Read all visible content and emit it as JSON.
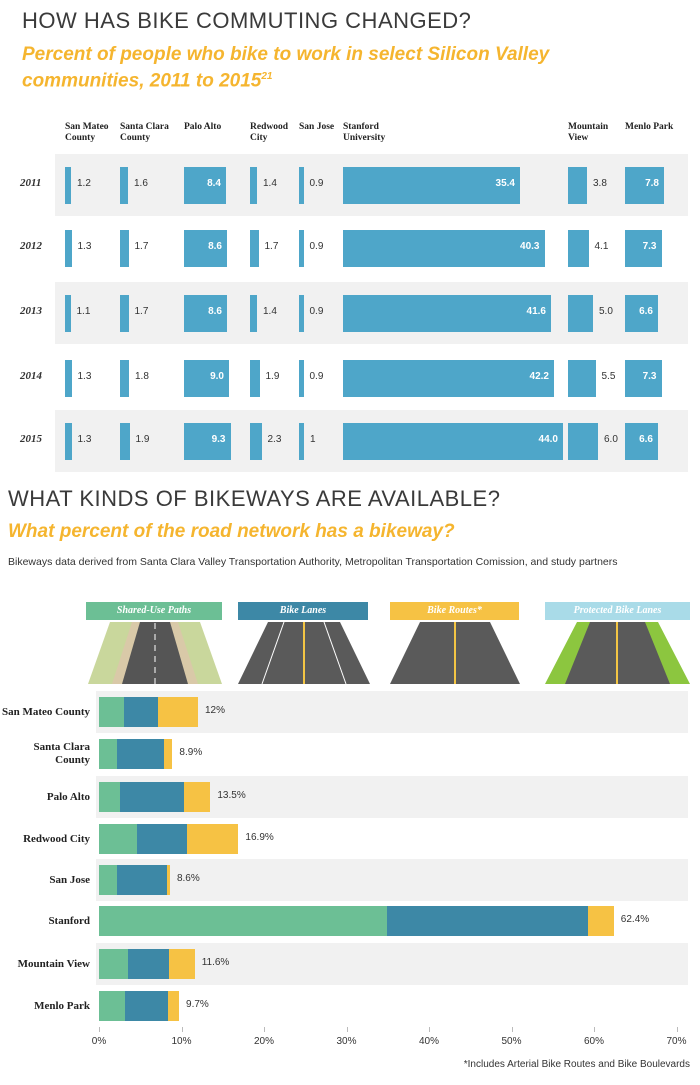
{
  "chart_data": [
    {
      "type": "bar",
      "title": "HOW HAS BIKE COMMUTING CHANGED?",
      "subtitle": "Percent of people who bike to work in select Silicon Valley communities, 2011 to 2015",
      "subtitle_note": "21",
      "categories": [
        "2011",
        "2012",
        "2013",
        "2014",
        "2015"
      ],
      "color": "#4ea6c9",
      "series": [
        {
          "name": "San Mateo County",
          "values": [
            1.2,
            1.3,
            1.1,
            1.3,
            1.3
          ]
        },
        {
          "name": "Santa Clara County",
          "values": [
            1.6,
            1.7,
            1.7,
            1.8,
            1.9
          ]
        },
        {
          "name": "Palo Alto",
          "values": [
            8.4,
            8.6,
            8.6,
            9,
            9.3
          ],
          "value_labels": [
            "8.4",
            "8.6",
            "8.6",
            "9.0",
            "9.3"
          ]
        },
        {
          "name": "Redwood City",
          "values": [
            1.4,
            1.7,
            1.4,
            1.9,
            2.3
          ]
        },
        {
          "name": "San Jose",
          "values": [
            0.9,
            0.9,
            0.9,
            0.9,
            1
          ]
        },
        {
          "name": "Stanford University",
          "values": [
            35.4,
            40.3,
            41.6,
            42.2,
            44
          ],
          "value_labels": [
            "35.4",
            "40.3",
            "41.6",
            "42.2",
            "44.0"
          ]
        },
        {
          "name": "Mountain View",
          "values": [
            3.8,
            4.1,
            5,
            5.5,
            6
          ],
          "value_labels": [
            "3.8",
            "4.1",
            "5.0",
            "5.5",
            "6.0"
          ]
        },
        {
          "name": "Menlo Park",
          "values": [
            7.8,
            7.3,
            6.6,
            7.3,
            6.6
          ]
        }
      ]
    },
    {
      "type": "stacked_bar",
      "title": "WHAT KINDS OF BIKEWAYS ARE AVAILABLE?",
      "subtitle": "What percent of the road network has a bikeway?",
      "source": "Bikeways data derived from Santa Clara Valley Transportation Authority, Metropolitan Transportation Comission, and study partners",
      "footnote": "*Includes Arterial Bike Routes and Bike Boulevards",
      "categories": [
        "San Mateo County",
        "Santa Clara County",
        "Palo Alto",
        "Redwood City",
        "San Jose",
        "Stanford",
        "Mountain View",
        "Menlo Park"
      ],
      "series": [
        {
          "name": "Shared-Use Paths",
          "color": "#6cbf95",
          "values": [
            3.0,
            2.2,
            2.5,
            4.6,
            2.2,
            34.9,
            3.5,
            3.2
          ]
        },
        {
          "name": "Bike Lanes",
          "color": "#3d88a6",
          "values": [
            4.2,
            5.7,
            7.8,
            6.1,
            6.0,
            24.4,
            5.0,
            5.2
          ]
        },
        {
          "name": "Bike Routes*",
          "color": "#f6c244",
          "values": [
            4.8,
            1.0,
            3.2,
            6.2,
            0.4,
            3.1,
            3.1,
            1.3
          ]
        },
        {
          "name": "Protected Bike Lanes",
          "color": "#a9dbe8",
          "values": [
            0,
            0,
            0,
            0,
            0,
            0,
            0,
            0
          ]
        }
      ],
      "totals": [
        12,
        8.9,
        13.5,
        16.9,
        8.6,
        62.4,
        11.6,
        9.7
      ],
      "total_labels": [
        "12%",
        "8.9%",
        "13.5%",
        "16.9%",
        "8.6%",
        "62.4%",
        "11.6%",
        "9.7%"
      ],
      "xlim": [
        0,
        70
      ],
      "xticks": [
        {
          "value": 0,
          "label": "0%"
        },
        {
          "value": 10,
          "label": "10%"
        },
        {
          "value": 20,
          "label": "20%"
        },
        {
          "value": 30,
          "label": "30%"
        },
        {
          "value": 40,
          "label": "40%"
        },
        {
          "value": 50,
          "label": "50%"
        },
        {
          "value": 60,
          "label": "60%"
        },
        {
          "value": 70,
          "label": "70%"
        }
      ]
    }
  ]
}
